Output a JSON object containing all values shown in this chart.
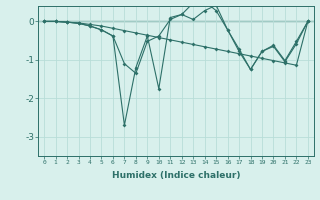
{
  "xlabel": "Humidex (Indice chaleur)",
  "background_color": "#d8f0ec",
  "grid_color": "#b8ddd8",
  "line_color": "#2d7068",
  "ylim": [
    -3.5,
    0.4
  ],
  "xlim": [
    -0.5,
    23.5
  ],
  "y_flat": [
    0.0,
    0.0,
    -0.02,
    -0.04,
    -0.08,
    -0.12,
    -0.18,
    -0.24,
    -0.3,
    -0.36,
    -0.42,
    -0.48,
    -0.54,
    -0.6,
    -0.66,
    -0.72,
    -0.78,
    -0.84,
    -0.9,
    -0.96,
    -1.02,
    -1.08,
    -1.14,
    0.0
  ],
  "y_spiky1": [
    0.0,
    0.0,
    -0.02,
    -0.05,
    -0.12,
    -0.22,
    -0.38,
    -2.7,
    -1.2,
    -0.38,
    -1.75,
    0.1,
    0.18,
    0.05,
    0.28,
    0.42,
    -0.22,
    -0.78,
    -1.25,
    -0.78,
    -0.62,
    -1.02,
    -0.52,
    0.0
  ],
  "y_spiky2": [
    0.0,
    0.0,
    -0.02,
    -0.05,
    -0.12,
    -0.22,
    -0.38,
    -1.1,
    -1.35,
    -0.52,
    -0.38,
    0.05,
    0.18,
    0.48,
    0.52,
    0.28,
    -0.22,
    -0.72,
    -1.25,
    -0.78,
    -0.65,
    -1.05,
    -0.58,
    0.0
  ]
}
